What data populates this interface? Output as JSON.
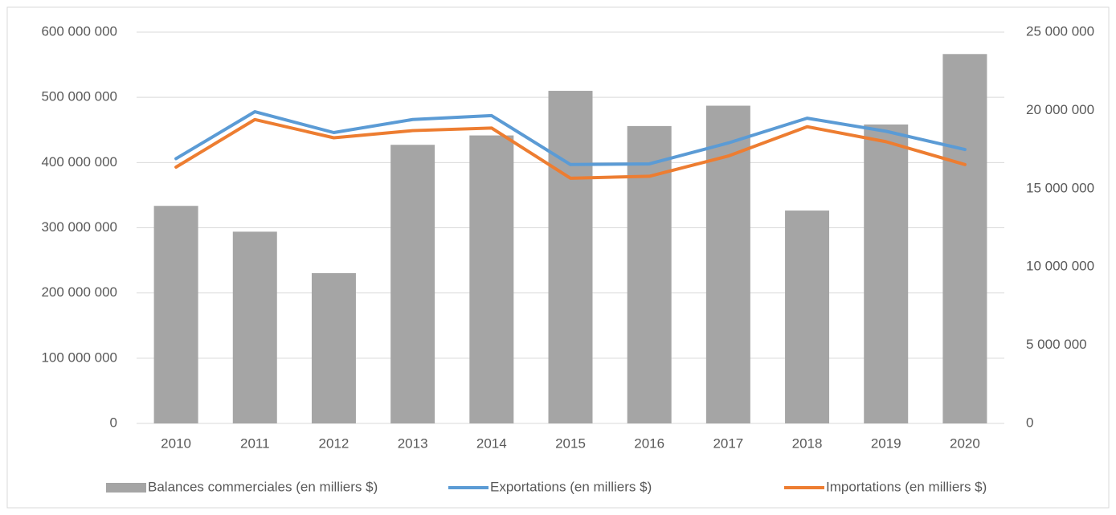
{
  "chart_data": {
    "type": "bar-line",
    "categories": [
      "2010",
      "2011",
      "2012",
      "2013",
      "2014",
      "2015",
      "2016",
      "2017",
      "2018",
      "2019",
      "2020"
    ],
    "series": [
      {
        "name": "Balances commerciales (en milliers $)",
        "type": "bar",
        "axis": "y2",
        "color": "#a5a5a5",
        "values": [
          13900000,
          12250000,
          9600000,
          17800000,
          18400000,
          21250000,
          19000000,
          20300000,
          13600000,
          19100000,
          23600000
        ]
      },
      {
        "name": "Exportations (en milliers $)",
        "type": "line",
        "axis": "y",
        "color": "#5b9bd5",
        "values": [
          406000000,
          478000000,
          446000000,
          466000000,
          472000000,
          397000000,
          398000000,
          430000000,
          468000000,
          448000000,
          420000000
        ]
      },
      {
        "name": "Importations (en milliers $)",
        "type": "line",
        "axis": "y",
        "color": "#ed7d31",
        "values": [
          393000000,
          466000000,
          438000000,
          449000000,
          453000000,
          376000000,
          379000000,
          410000000,
          455000000,
          432000000,
          397000000
        ]
      }
    ],
    "ylim": [
      0,
      600000000
    ],
    "yticks": [
      0,
      {
        "value": 100000000,
        "label": "100 000 000"
      },
      {
        "value": 200000000,
        "label": "200 000 000"
      },
      {
        "value": 300000000,
        "label": "300 000 000"
      },
      {
        "value": 400000000,
        "label": "400 000 000"
      },
      {
        "value": 500000000,
        "label": "500 000 000"
      },
      {
        "value": 600000000,
        "label": "600 000 000"
      }
    ],
    "y2lim": [
      0,
      25000000
    ],
    "y2ticks": [
      0,
      {
        "value": 5000000,
        "label": "5 000 000"
      },
      {
        "value": 10000000,
        "label": "10 000 000"
      },
      {
        "value": 15000000,
        "label": "15 000 000"
      },
      {
        "value": 20000000,
        "label": "20 000 000"
      },
      {
        "value": 25000000,
        "label": "25 000 000"
      }
    ],
    "grid": true,
    "legend": "bottom"
  }
}
